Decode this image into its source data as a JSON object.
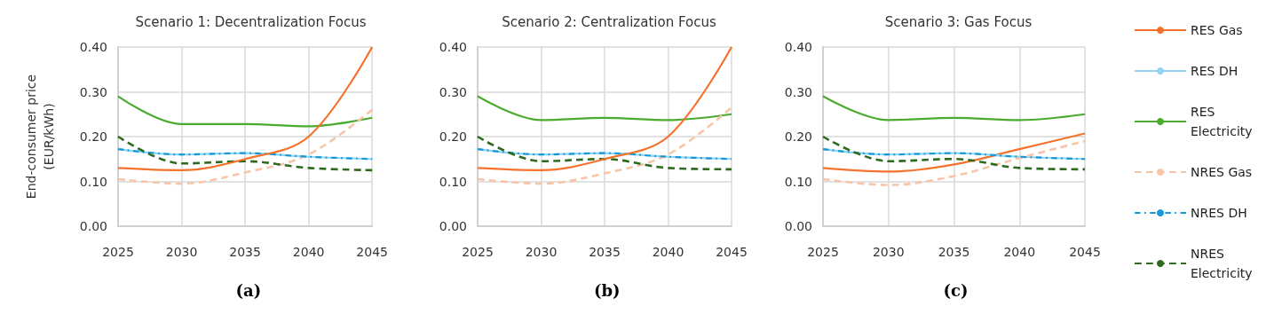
{
  "chart_data": [
    {
      "type": "line",
      "title": "Scenario 1: Decentralization Focus",
      "ylabel": "End-consumer price\n(EUR/kWh)",
      "annotations": [
        "(a)"
      ],
      "x": [
        2025,
        2030,
        2035,
        2040,
        2045
      ],
      "xlim": [
        2025,
        2045
      ],
      "xticks": [
        2025,
        2030,
        2035,
        2040,
        2045
      ],
      "ylim": [
        0,
        0.4
      ],
      "yticks": [
        {
          "value": 0,
          "label": "0.00"
        },
        {
          "value": 0.1,
          "label": "0.10"
        },
        {
          "value": 0.2,
          "label": "0.20"
        },
        {
          "value": 0.3,
          "label": "0.30"
        },
        {
          "value": 0.4,
          "label": "0.40"
        }
      ],
      "grid": true,
      "legend": false,
      "marker": "none",
      "series": [
        {
          "color": "#8fd3f5",
          "line_style": "solid",
          "values": [
            0.172,
            0.16,
            0.163,
            0.155,
            0.15
          ]
        },
        {
          "color": "#4aab2e",
          "line_style": "solid",
          "values": [
            0.29,
            0.228,
            0.228,
            0.223,
            0.242
          ]
        },
        {
          "color": "#f8c4a8",
          "line_style": "dashed",
          "values": [
            0.105,
            0.095,
            0.12,
            0.16,
            0.26
          ]
        },
        {
          "color": "#169ad7",
          "line_style": "dashdot",
          "values": [
            0.172,
            0.16,
            0.163,
            0.155,
            0.15
          ]
        },
        {
          "color": "#2d6a1e",
          "line_style": "dashed",
          "values": [
            0.2,
            0.14,
            0.145,
            0.13,
            0.125
          ]
        },
        {
          "color": "#f4722b",
          "line_style": "solid",
          "values": [
            0.13,
            0.125,
            0.15,
            0.2,
            0.4
          ]
        }
      ]
    },
    {
      "type": "line",
      "title": "Scenario 2: Centralization Focus",
      "annotations": [
        "(b)"
      ],
      "x": [
        2025,
        2030,
        2035,
        2040,
        2045
      ],
      "xlim": [
        2025,
        2045
      ],
      "xticks": [
        2025,
        2030,
        2035,
        2040,
        2045
      ],
      "ylim": [
        0,
        0.4
      ],
      "yticks": [
        {
          "value": 0,
          "label": "0.00"
        },
        {
          "value": 0.1,
          "label": "0.10"
        },
        {
          "value": 0.2,
          "label": "0.20"
        },
        {
          "value": 0.3,
          "label": "0.30"
        },
        {
          "value": 0.4,
          "label": "0.40"
        }
      ],
      "grid": true,
      "legend": false,
      "marker": "none",
      "series": [
        {
          "color": "#8fd3f5",
          "line_style": "solid",
          "values": [
            0.172,
            0.16,
            0.163,
            0.155,
            0.15
          ]
        },
        {
          "color": "#4aab2e",
          "line_style": "solid",
          "values": [
            0.29,
            0.237,
            0.242,
            0.237,
            0.25
          ]
        },
        {
          "color": "#f8c4a8",
          "line_style": "dashed",
          "values": [
            0.105,
            0.095,
            0.118,
            0.16,
            0.265
          ]
        },
        {
          "color": "#169ad7",
          "line_style": "dashdot",
          "values": [
            0.172,
            0.16,
            0.163,
            0.155,
            0.15
          ]
        },
        {
          "color": "#2d6a1e",
          "line_style": "dashed",
          "values": [
            0.2,
            0.145,
            0.15,
            0.13,
            0.127
          ]
        },
        {
          "color": "#f4722b",
          "line_style": "solid",
          "values": [
            0.13,
            0.125,
            0.15,
            0.2,
            0.4
          ]
        }
      ]
    },
    {
      "type": "line",
      "title": "Scenario 3: Gas Focus",
      "annotations": [
        "(c)"
      ],
      "x": [
        2025,
        2030,
        2035,
        2040,
        2045
      ],
      "xlim": [
        2025,
        2045
      ],
      "xticks": [
        2025,
        2030,
        2035,
        2040,
        2045
      ],
      "ylim": [
        0,
        0.4
      ],
      "yticks": [
        {
          "value": 0,
          "label": "0.00"
        },
        {
          "value": 0.1,
          "label": "0.10"
        },
        {
          "value": 0.2,
          "label": "0.20"
        },
        {
          "value": 0.3,
          "label": "0.30"
        },
        {
          "value": 0.4,
          "label": "0.40"
        }
      ],
      "grid": true,
      "legend": "right",
      "marker": "none",
      "series": [
        {
          "name": "RES Gas",
          "color": "#f4722b",
          "line_style": "solid",
          "values": [
            0.13,
            0.122,
            0.138,
            0.172,
            0.207
          ]
        },
        {
          "name": "RES DH",
          "color": "#8fd3f5",
          "line_style": "solid",
          "values": [
            0.172,
            0.16,
            0.163,
            0.155,
            0.15
          ]
        },
        {
          "name": "RES Electricity",
          "color": "#4aab2e",
          "line_style": "solid",
          "values": [
            0.29,
            0.237,
            0.242,
            0.237,
            0.25
          ]
        },
        {
          "name": "NRES Gas",
          "color": "#f8c4a8",
          "line_style": "dashed",
          "values": [
            0.105,
            0.092,
            0.112,
            0.152,
            0.19
          ]
        },
        {
          "name": "NRES DH",
          "color": "#169ad7",
          "line_style": "dashdot",
          "values": [
            0.172,
            0.16,
            0.163,
            0.155,
            0.15
          ]
        },
        {
          "name": "NRES Electricity",
          "color": "#2d6a1e",
          "line_style": "dashed",
          "values": [
            0.2,
            0.145,
            0.15,
            0.13,
            0.127
          ]
        }
      ]
    }
  ]
}
